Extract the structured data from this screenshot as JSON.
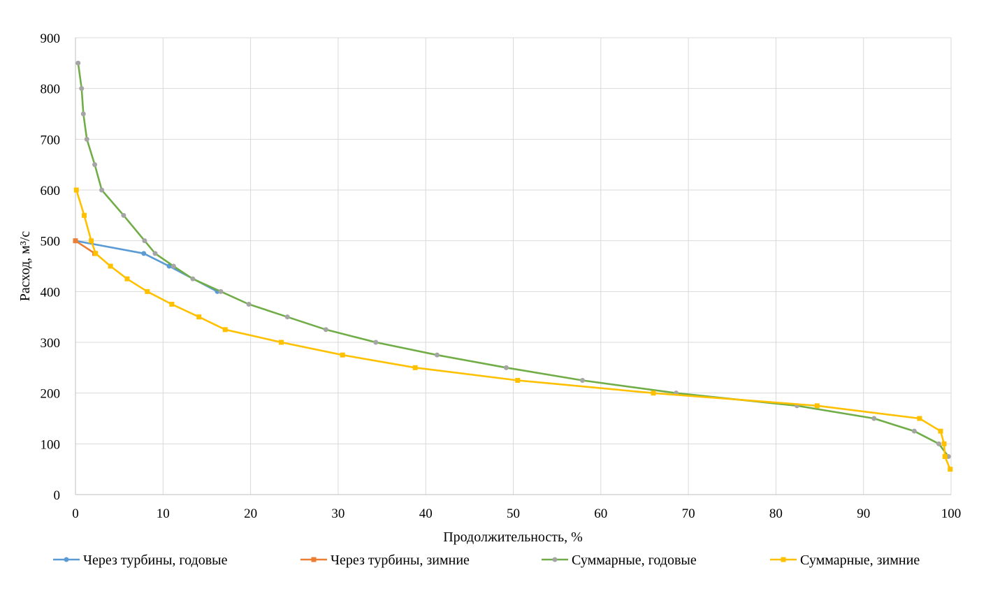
{
  "chart_data": {
    "type": "line",
    "title": "",
    "xlabel": "Продолжительность, %",
    "ylabel": "Расход, м³/с",
    "xlim": [
      0,
      100
    ],
    "ylim": [
      0,
      900
    ],
    "xticks": [
      0,
      10,
      20,
      30,
      40,
      50,
      60,
      70,
      80,
      90,
      100
    ],
    "yticks": [
      0,
      100,
      200,
      300,
      400,
      500,
      600,
      700,
      800,
      900
    ],
    "grid": true,
    "legend_position": "bottom",
    "series": [
      {
        "name": "Через турбины, годовые",
        "color": "#5B9BD5",
        "marker": "circle",
        "points": [
          [
            0,
            500
          ],
          [
            7.8,
            475
          ],
          [
            10.7,
            450
          ],
          [
            16.2,
            400
          ]
        ]
      },
      {
        "name": "Через турбины, зимние",
        "color": "#ED7D31",
        "marker": "square",
        "points": [
          [
            0,
            500
          ],
          [
            2.2,
            475
          ]
        ]
      },
      {
        "name": "Суммарные, годовые",
        "color": "#70AD47",
        "marker_color": "#A5A5A5",
        "marker": "circle",
        "points": [
          [
            0.3,
            850
          ],
          [
            0.7,
            800
          ],
          [
            0.9,
            750
          ],
          [
            1.3,
            700
          ],
          [
            2.2,
            650
          ],
          [
            3.0,
            600
          ],
          [
            5.5,
            550
          ],
          [
            7.9,
            500
          ],
          [
            9.1,
            475
          ],
          [
            11.2,
            450
          ],
          [
            13.4,
            425
          ],
          [
            16.6,
            400
          ],
          [
            19.8,
            375
          ],
          [
            24.2,
            350
          ],
          [
            28.6,
            325
          ],
          [
            34.3,
            300
          ],
          [
            41.3,
            275
          ],
          [
            49.2,
            250
          ],
          [
            57.9,
            225
          ],
          [
            68.6,
            200
          ],
          [
            82.4,
            175
          ],
          [
            91.2,
            150
          ],
          [
            95.8,
            125
          ],
          [
            98.6,
            100
          ],
          [
            99.7,
            75
          ]
        ]
      },
      {
        "name": "Суммарные, зимние",
        "color": "#FFC000",
        "marker": "square",
        "points": [
          [
            0.1,
            600
          ],
          [
            1.0,
            550
          ],
          [
            1.8,
            500
          ],
          [
            2.3,
            475
          ],
          [
            4.0,
            450
          ],
          [
            5.9,
            425
          ],
          [
            8.2,
            400
          ],
          [
            11.0,
            375
          ],
          [
            14.1,
            350
          ],
          [
            17.1,
            325
          ],
          [
            23.5,
            300
          ],
          [
            30.5,
            275
          ],
          [
            38.8,
            250
          ],
          [
            50.5,
            225
          ],
          [
            66.0,
            200
          ],
          [
            84.7,
            175
          ],
          [
            96.4,
            150
          ],
          [
            98.8,
            125
          ],
          [
            99.2,
            100
          ],
          [
            99.3,
            75
          ],
          [
            99.9,
            50
          ]
        ]
      }
    ]
  }
}
